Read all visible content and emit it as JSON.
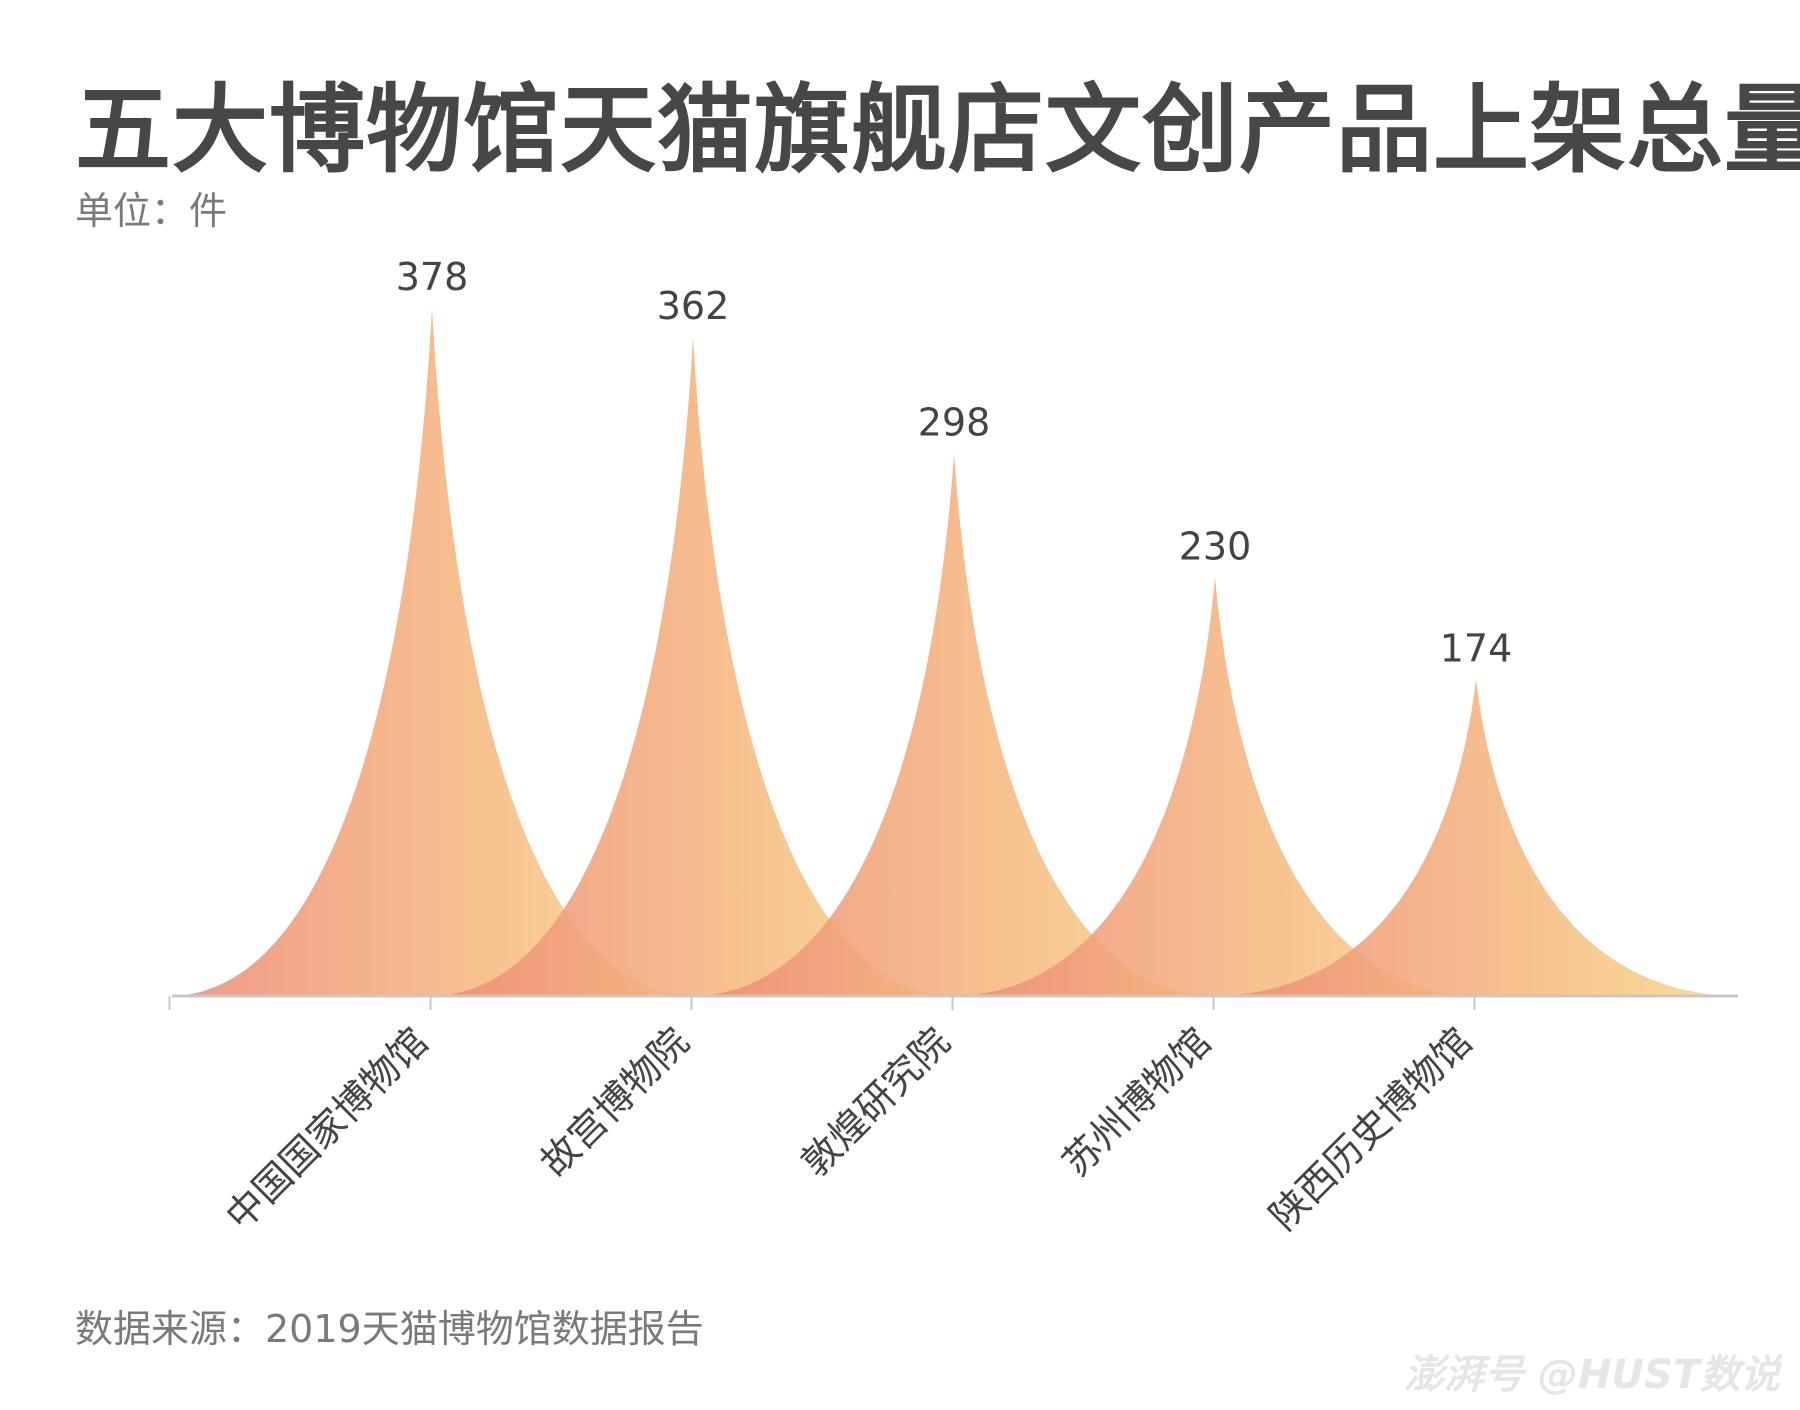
{
  "header": {
    "title": "五大博物馆天猫旗舰店文创产品上架总量",
    "unit": "单位：件"
  },
  "footer": {
    "source": "数据来源：2019天猫博物馆数据报告",
    "watermark": "澎湃号 @HUST数说"
  },
  "colors": {
    "peak_left": "#ee8a78",
    "peak_mid": "#f4b27e",
    "peak_right": "#fcd98a",
    "axis": "#c8c8c8",
    "text": "#444444"
  },
  "chart_data": {
    "type": "area",
    "title": "五大博物馆天猫旗舰店文创产品上架总量",
    "ylabel": "单位：件",
    "xlabel": "",
    "categories": [
      "中国国家博物馆",
      "故宫博物院",
      "敦煌研究院",
      "苏州博物馆",
      "陕西历史博物馆"
    ],
    "values": [
      378,
      362,
      298,
      230,
      174
    ],
    "ylim": [
      0,
      378
    ],
    "grid": false,
    "legend": "none"
  }
}
